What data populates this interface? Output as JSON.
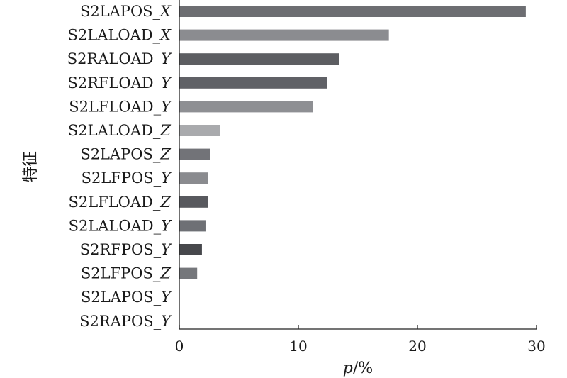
{
  "chart_data": {
    "type": "bar",
    "orientation": "horizontal",
    "title": "",
    "xlabel_var": "p",
    "xlabel_unit": "/%",
    "ylabel": "特征",
    "xlim": [
      0,
      30
    ],
    "x_ticks": [
      0,
      10,
      20,
      30
    ],
    "grid": false,
    "categories": [
      {
        "base": "S2LAPOS_",
        "suffix": "X"
      },
      {
        "base": "S2LALOAD_",
        "suffix": "X"
      },
      {
        "base": "S2RALOAD_",
        "suffix": "Y"
      },
      {
        "base": "S2RFLOAD_",
        "suffix": "Y"
      },
      {
        "base": "S2LFLOAD_",
        "suffix": "Y"
      },
      {
        "base": "S2LALOAD_",
        "suffix": "Z"
      },
      {
        "base": "S2LAPOS_",
        "suffix": "Z"
      },
      {
        "base": "S2LFPOS_",
        "suffix": "Y"
      },
      {
        "base": "S2LFLOAD_",
        "suffix": "Z"
      },
      {
        "base": "S2LALOAD_",
        "suffix": "Y"
      },
      {
        "base": "S2RFPOS_",
        "suffix": "Y"
      },
      {
        "base": "S2LFPOS_",
        "suffix": "Z"
      },
      {
        "base": "S2LAPOS_",
        "suffix": "Y"
      },
      {
        "base": "S2RAPOS_",
        "suffix": "Y"
      }
    ],
    "values": [
      29.1,
      17.6,
      13.4,
      12.4,
      11.2,
      3.4,
      2.6,
      2.4,
      2.4,
      2.2,
      1.9,
      1.5,
      0,
      0
    ],
    "bar_colors": [
      "#6d6e72",
      "#8b8c90",
      "#5d5e62",
      "#606166",
      "#8e8f93",
      "#a9aaad",
      "#727378",
      "#8a8b8f",
      "#58595e",
      "#6e7075",
      "#47484c",
      "#75777b",
      "#6d6e72",
      "#6d6e72"
    ]
  }
}
